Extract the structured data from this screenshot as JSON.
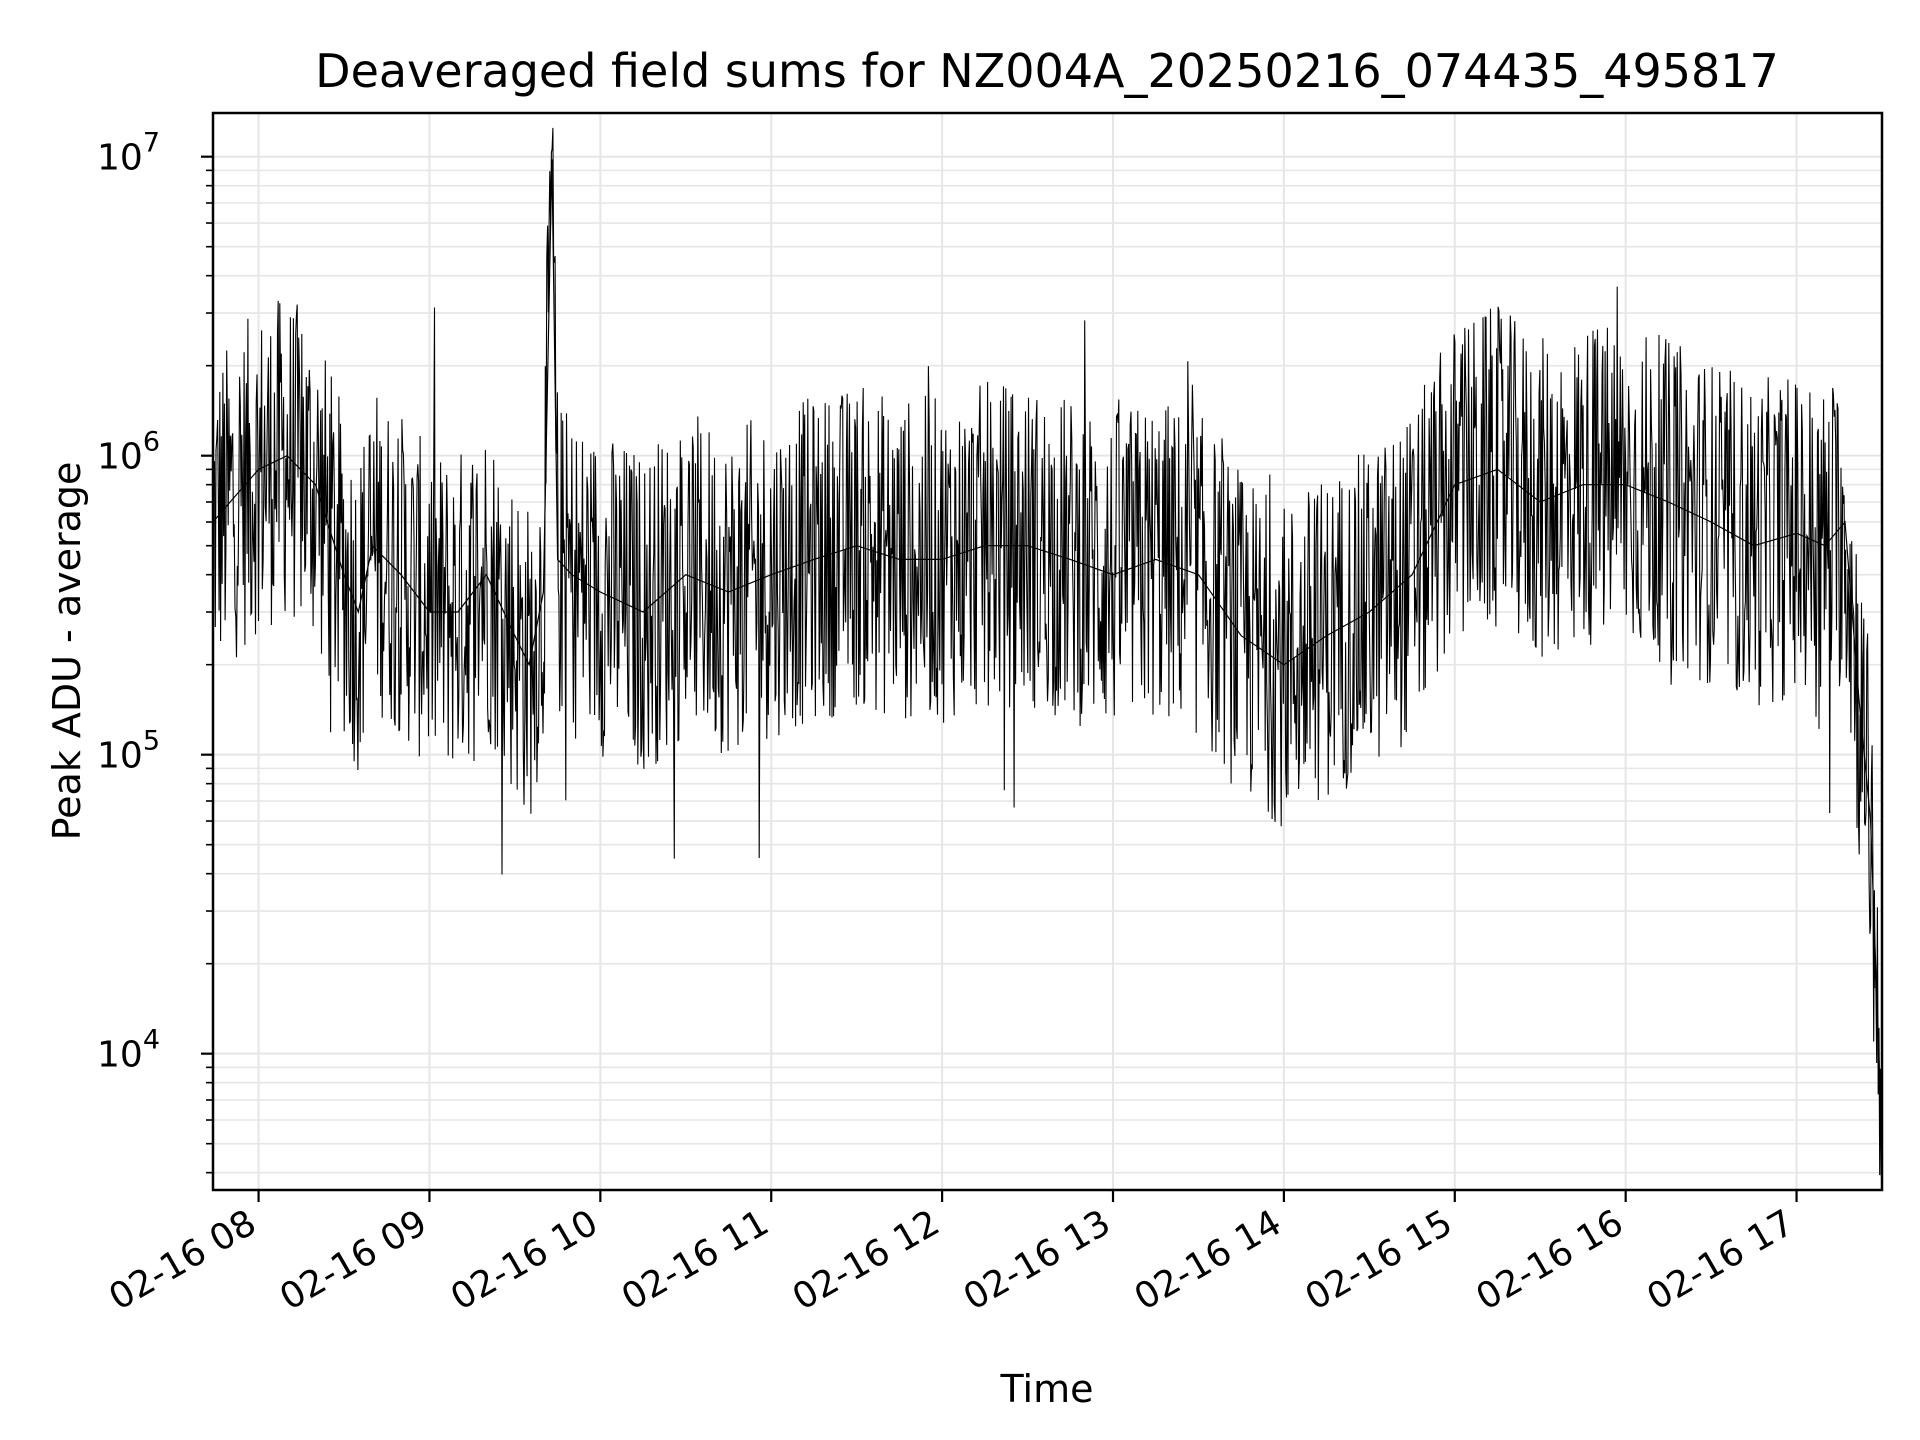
{
  "chart_data": {
    "type": "line",
    "title": "Deaveraged field sums for NZ004A_20250216_074435_495817",
    "xlabel": "Time",
    "ylabel": "Peak ADU - average",
    "yscale": "log",
    "ylim": [
      3500,
      14000000
    ],
    "xlim": [
      "2025-02-16T07:44",
      "2025-02-16T17:30"
    ],
    "grid": true,
    "line_color": "#000000",
    "x_ticks": [
      "02-16 08",
      "02-16 09",
      "02-16 10",
      "02-16 11",
      "02-16 12",
      "02-16 13",
      "02-16 14",
      "02-16 15",
      "02-16 16",
      "02-16 17"
    ],
    "y_ticks": [
      {
        "value": 10000,
        "base": "10",
        "exp": "4"
      },
      {
        "value": 100000,
        "base": "10",
        "exp": "5"
      },
      {
        "value": 1000000,
        "base": "10",
        "exp": "6"
      },
      {
        "value": 10000000,
        "base": "10",
        "exp": "7"
      }
    ],
    "series": [
      {
        "x": [
          "2025-02-16T07:44",
          "2025-02-16T07:50",
          "2025-02-16T08:00",
          "2025-02-16T08:10",
          "2025-02-16T08:20",
          "2025-02-16T08:30",
          "2025-02-16T08:35",
          "2025-02-16T08:40",
          "2025-02-16T08:50",
          "2025-02-16T09:00",
          "2025-02-16T09:10",
          "2025-02-16T09:20",
          "2025-02-16T09:30",
          "2025-02-16T09:35",
          "2025-02-16T09:40",
          "2025-02-16T09:43",
          "2025-02-16T09:45",
          "2025-02-16T09:50",
          "2025-02-16T10:00",
          "2025-02-16T10:15",
          "2025-02-16T10:30",
          "2025-02-16T10:45",
          "2025-02-16T11:00",
          "2025-02-16T11:15",
          "2025-02-16T11:30",
          "2025-02-16T11:45",
          "2025-02-16T12:00",
          "2025-02-16T12:15",
          "2025-02-16T12:30",
          "2025-02-16T12:45",
          "2025-02-16T13:00",
          "2025-02-16T13:15",
          "2025-02-16T13:30",
          "2025-02-16T13:45",
          "2025-02-16T14:00",
          "2025-02-16T14:15",
          "2025-02-16T14:30",
          "2025-02-16T14:45",
          "2025-02-16T15:00",
          "2025-02-16T15:15",
          "2025-02-16T15:30",
          "2025-02-16T15:45",
          "2025-02-16T16:00",
          "2025-02-16T16:15",
          "2025-02-16T16:30",
          "2025-02-16T16:45",
          "2025-02-16T17:00",
          "2025-02-16T17:10",
          "2025-02-16T17:17",
          "2025-02-16T17:22",
          "2025-02-16T17:26",
          "2025-02-16T17:30"
        ],
        "y": [
          600000,
          700000,
          900000,
          1000000,
          800000,
          400000,
          300000,
          500000,
          400000,
          300000,
          300000,
          400000,
          250000,
          200000,
          350000,
          9800000,
          450000,
          400000,
          350000,
          300000,
          400000,
          350000,
          400000,
          450000,
          500000,
          450000,
          450000,
          500000,
          500000,
          450000,
          400000,
          450000,
          400000,
          250000,
          200000,
          250000,
          300000,
          400000,
          800000,
          900000,
          700000,
          800000,
          800000,
          700000,
          600000,
          500000,
          550000,
          500000,
          600000,
          150000,
          60000,
          5000
        ]
      }
    ]
  }
}
